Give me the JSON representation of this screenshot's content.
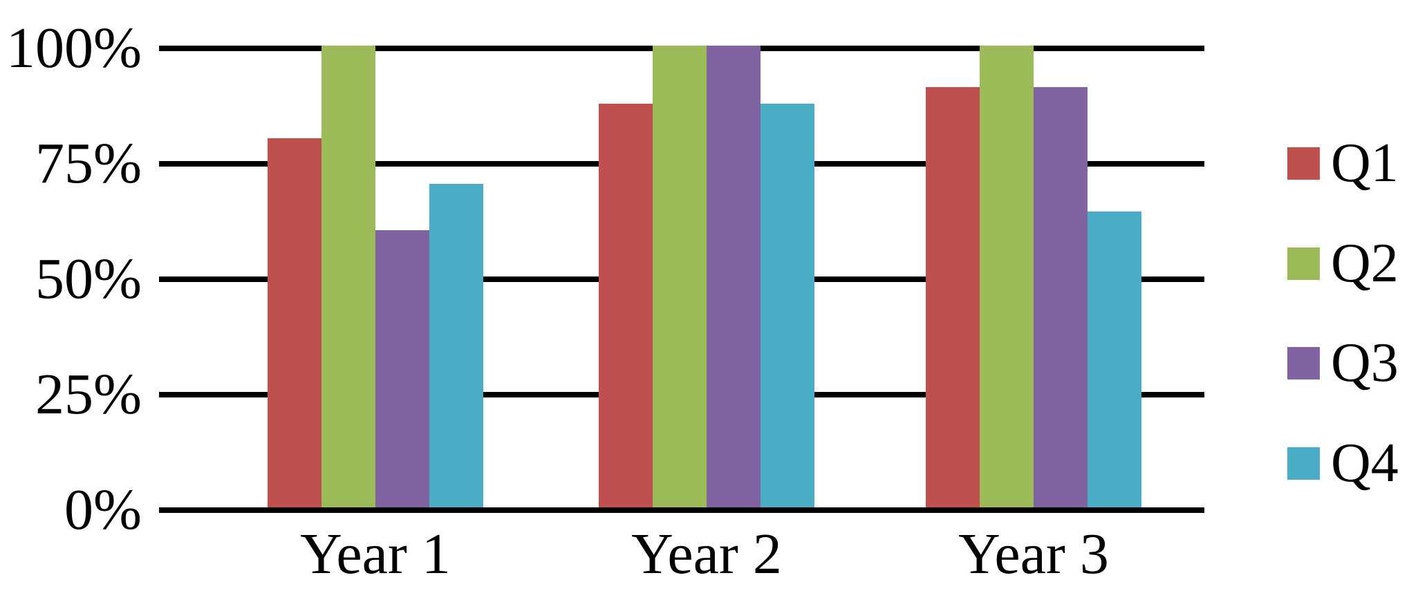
{
  "chart_data": {
    "type": "bar",
    "title": "",
    "categories": [
      "Year 1",
      "Year 2",
      "Year 3"
    ],
    "series": [
      {
        "name": "Q1",
        "color": "#C0504D",
        "values": [
          80,
          87.5,
          91
        ]
      },
      {
        "name": "Q2",
        "color": "#9BBB59",
        "values": [
          100,
          100,
          100
        ]
      },
      {
        "name": "Q3",
        "color": "#8064A2",
        "values": [
          60,
          100,
          91
        ]
      },
      {
        "name": "Q4",
        "color": "#4BACC6",
        "values": [
          70,
          87.5,
          64
        ]
      }
    ],
    "xlabel": "",
    "ylabel": "",
    "ylim": [
      0,
      100
    ],
    "yticks": [
      {
        "value": 0,
        "label": "0%"
      },
      {
        "value": 25,
        "label": "25%"
      },
      {
        "value": 50,
        "label": "50%"
      },
      {
        "value": 75,
        "label": "75%"
      },
      {
        "value": 100,
        "label": "100%"
      }
    ],
    "grid": "horizontal",
    "gridline_color": "#000000",
    "background_color": "#FFFFFF",
    "legend_position": "right",
    "legend_labels": [
      "Q1",
      "Q2",
      "Q3",
      "Q4"
    ]
  }
}
